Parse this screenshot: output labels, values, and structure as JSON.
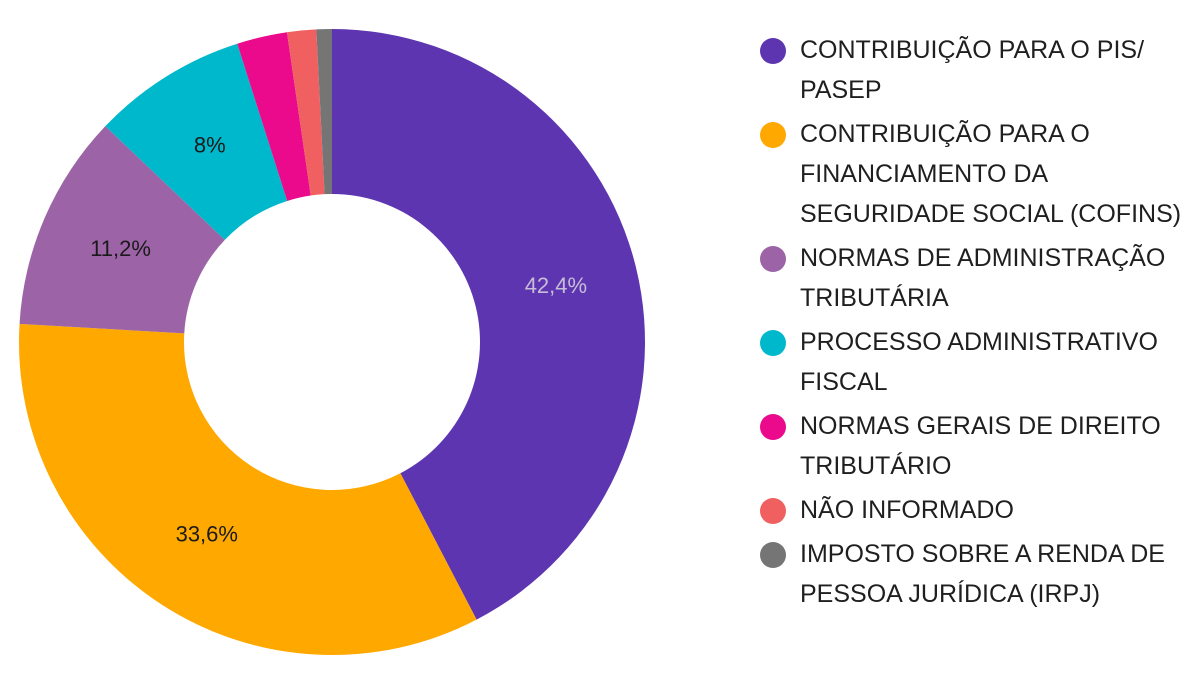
{
  "chart_data": {
    "type": "pie",
    "variant": "donut",
    "slices": [
      {
        "name": "CONTRIBUIÇÃO PARA O PIS/ PASEP",
        "value": 42.4,
        "label": "42,4%",
        "color": "#5e35b1",
        "label_color": "#c6bdd6"
      },
      {
        "name": "CONTRIBUIÇÃO PARA O FINANCIAMENTO DA SEGURIDADE SOCIAL (COFINS)",
        "value": 33.6,
        "label": "33,6%",
        "color": "#ffa800",
        "label_color": "#1a1a1a"
      },
      {
        "name": "NORMAS DE ADMINISTRAÇÃO TRIBUTÁRIA",
        "value": 11.2,
        "label": "11,2%",
        "color": "#9c64a6",
        "label_color": "#1a1a1a"
      },
      {
        "name": "PROCESSO ADMINISTRATIVO FISCAL",
        "value": 8.0,
        "label": "8%",
        "color": "#00b8cc",
        "label_color": "#1a1a1a"
      },
      {
        "name": "NORMAS GERAIS DE DIREITO TRIBUTÁRIO",
        "value": 2.6,
        "label": "",
        "color": "#ec0a8c",
        "label_color": "#1a1a1a"
      },
      {
        "name": "NÃO INFORMADO",
        "value": 1.5,
        "label": "",
        "color": "#f06060",
        "label_color": "#1a1a1a"
      },
      {
        "name": "IMPOSTO SOBRE A RENDA DE PESSOA JURÍDICA (IRPJ)",
        "value": 0.8,
        "label": "",
        "color": "#757575",
        "label_color": "#1a1a1a"
      }
    ],
    "legend_position": "right"
  },
  "legend": [
    {
      "text": "CONTRIBUIÇÃO PARA O PIS/ PASEP",
      "color": "#5e35b1"
    },
    {
      "text": "CONTRIBUIÇÃO PARA O FINANCIAMENTO DA SEGURIDADE SOCIAL (COFINS)",
      "color": "#ffa800"
    },
    {
      "text": "NORMAS DE ADMINISTRAÇÃO TRIBUTÁRIA",
      "color": "#9c64a6"
    },
    {
      "text": "PROCESSO ADMINISTRATIVO FISCAL",
      "color": "#00b8cc"
    },
    {
      "text": "NORMAS GERAIS DE DIREITO TRIBUTÁRIO",
      "color": "#ec0a8c"
    },
    {
      "text": "NÃO INFORMADO",
      "color": "#f06060"
    },
    {
      "text": "IMPOSTO SOBRE A RENDA DE PESSOA JURÍDICA (IRPJ)",
      "color": "#757575"
    }
  ]
}
